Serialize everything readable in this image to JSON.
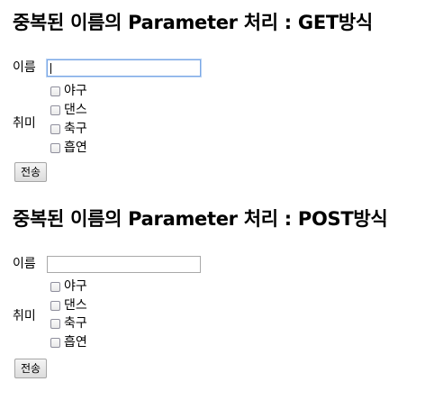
{
  "forms": [
    {
      "title": "중복된 이름의 Parameter 처리 : GET방식",
      "name_label": "이름",
      "name_value": "",
      "hobby_label": "취미",
      "hobbies": [
        "야구",
        "댄스",
        "축구",
        "흡연"
      ],
      "submit_label": "전송",
      "name_focused": true
    },
    {
      "title": "중복된 이름의 Parameter 처리 : POST방식",
      "name_label": "이름",
      "name_value": "",
      "hobby_label": "취미",
      "hobbies": [
        "야구",
        "댄스",
        "축구",
        "흡연"
      ],
      "submit_label": "전송",
      "name_focused": false
    }
  ]
}
